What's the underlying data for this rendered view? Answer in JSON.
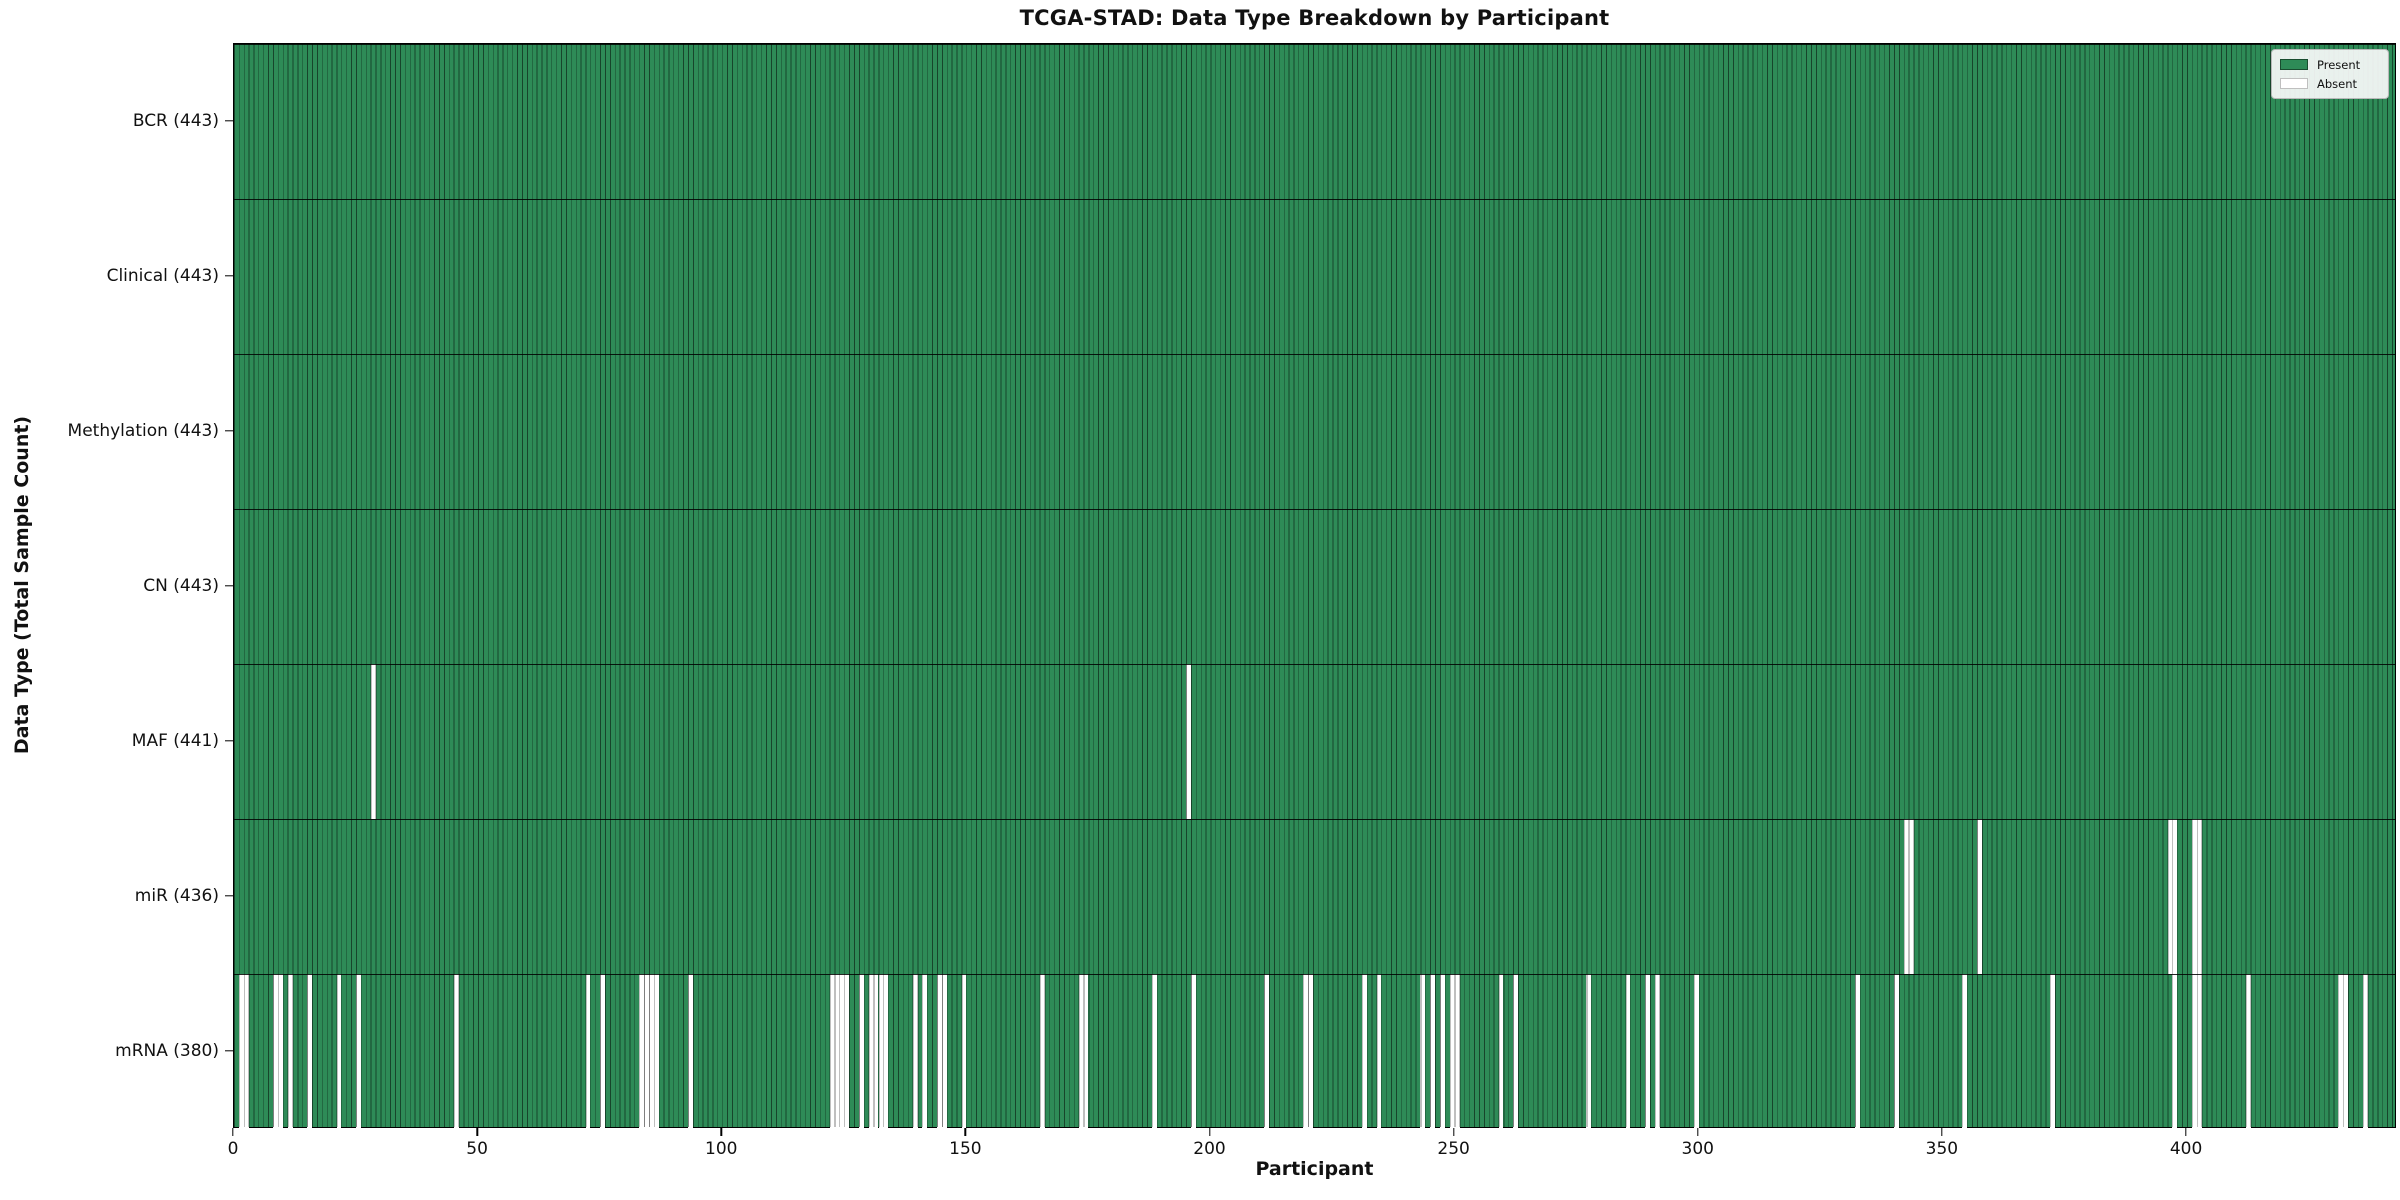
{
  "title": "TCGA-STAD: Data Type Breakdown by Participant",
  "xlabel": "Participant",
  "ylabel": "Data Type (Total Sample Count)",
  "legend": {
    "present_label": "Present",
    "absent_label": "Absent",
    "position": "upper right"
  },
  "colors": {
    "present": "#2e8b57",
    "absent": "#ffffff",
    "cell_edge": "rgba(0,0,0,0.5)",
    "row_divider": "rgba(0,0,0,0.85)",
    "plot_border": "#000000",
    "text": "#111111"
  },
  "chart_data": {
    "type": "heatmap",
    "title": "TCGA-STAD: Data Type Breakdown by Participant",
    "xlabel": "Participant",
    "ylabel": "Data Type (Total Sample Count)",
    "n_participants": 443,
    "x_range": [
      0,
      443
    ],
    "x_ticks": [
      0,
      50,
      100,
      150,
      200,
      250,
      300,
      350,
      400
    ],
    "grid": "cell-edges",
    "legend_entries": [
      "Present",
      "Absent"
    ],
    "legend_position": "upper right",
    "rows": [
      {
        "label": "BCR (443)",
        "data_type": "BCR",
        "present_count": 443,
        "absent_participants": []
      },
      {
        "label": "Clinical (443)",
        "data_type": "Clinical",
        "present_count": 443,
        "absent_participants": []
      },
      {
        "label": "Methylation (443)",
        "data_type": "Methylation",
        "present_count": 443,
        "absent_participants": []
      },
      {
        "label": "CN (443)",
        "data_type": "CN",
        "present_count": 443,
        "absent_participants": []
      },
      {
        "label": "MAF (441)",
        "data_type": "MAF",
        "present_count": 441,
        "absent_participants": [
          28,
          195
        ]
      },
      {
        "label": "miR (436)",
        "data_type": "miR",
        "present_count": 436,
        "absent_participants": [
          342,
          343,
          357,
          396,
          397,
          401,
          402
        ]
      },
      {
        "label": "mRNA (380)",
        "data_type": "mRNA",
        "present_count": 380,
        "absent_participants": [
          1,
          2,
          8,
          9,
          11,
          15,
          21,
          25,
          45,
          72,
          75,
          83,
          84,
          85,
          86,
          93,
          122,
          123,
          124,
          125,
          128,
          130,
          131,
          132,
          133,
          139,
          141,
          144,
          145,
          149,
          165,
          173,
          174,
          188,
          196,
          211,
          219,
          220,
          231,
          234,
          243,
          245,
          247,
          249,
          250,
          259,
          262,
          277,
          285,
          289,
          291,
          299,
          332,
          340,
          354,
          372,
          397,
          401,
          402,
          412,
          431,
          432,
          436
        ]
      }
    ]
  }
}
